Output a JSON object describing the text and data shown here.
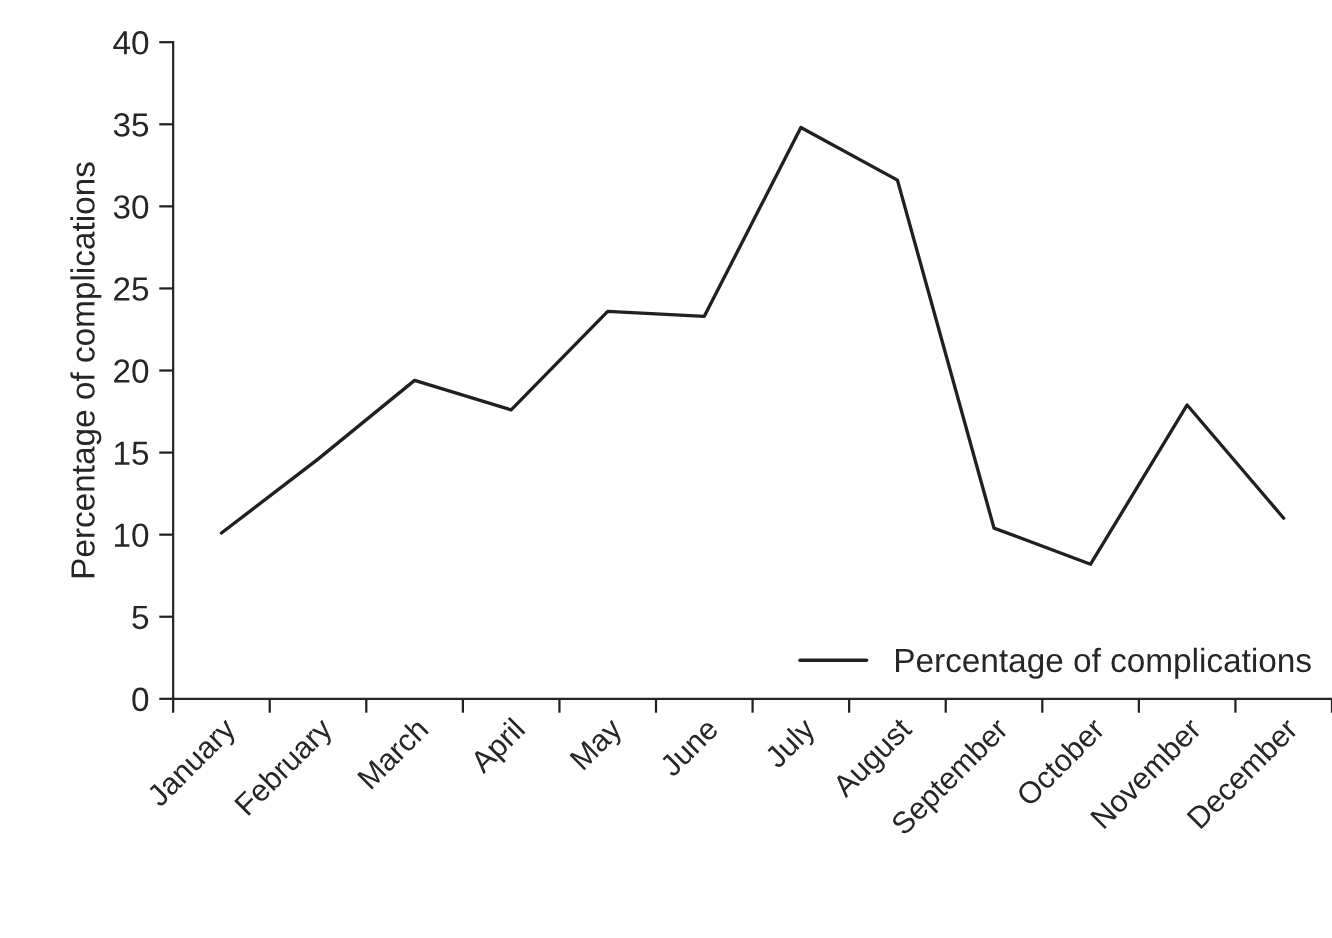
{
  "chart_data": {
    "type": "line",
    "ylabel": "Percentage of complications",
    "categories": [
      "January",
      "February",
      "March",
      "April",
      "May",
      "June",
      "July",
      "August",
      "September",
      "October",
      "November",
      "December"
    ],
    "series": [
      {
        "name": "Percentage of complications",
        "color": "#231f20",
        "values": [
          10.1,
          14.6,
          19.4,
          17.6,
          23.6,
          23.3,
          34.8,
          31.6,
          10.4,
          8.2,
          17.9,
          11.0
        ]
      }
    ],
    "ylim": [
      0,
      40
    ],
    "yticks": [
      0,
      5,
      10,
      15,
      20,
      25,
      30,
      35,
      40
    ],
    "legend": "bottom right",
    "grid": false,
    "marker": "none",
    "line_style": "solid"
  }
}
